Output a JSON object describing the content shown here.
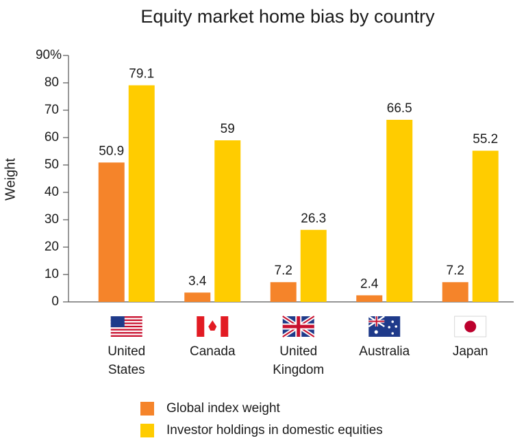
{
  "chart_data": {
    "type": "bar",
    "title": "Equity market home bias by country",
    "y_label": "Weight",
    "categories": [
      "United States",
      "Canada",
      "United Kingdom",
      "Australia",
      "Japan"
    ],
    "series": [
      {
        "name": "Global index weight",
        "color": "#f5842a",
        "values": [
          50.9,
          3.4,
          7.2,
          2.4,
          7.2
        ]
      },
      {
        "name": "Investor holdings in domestic equities",
        "color": "#ffcc00",
        "values": [
          79.1,
          59,
          26.3,
          66.5,
          55.2
        ]
      }
    ],
    "ylim": [
      0,
      90
    ],
    "yticks": [
      0,
      10,
      20,
      30,
      40,
      50,
      60,
      70,
      80,
      {
        "value": 90,
        "label": "90%"
      }
    ]
  }
}
